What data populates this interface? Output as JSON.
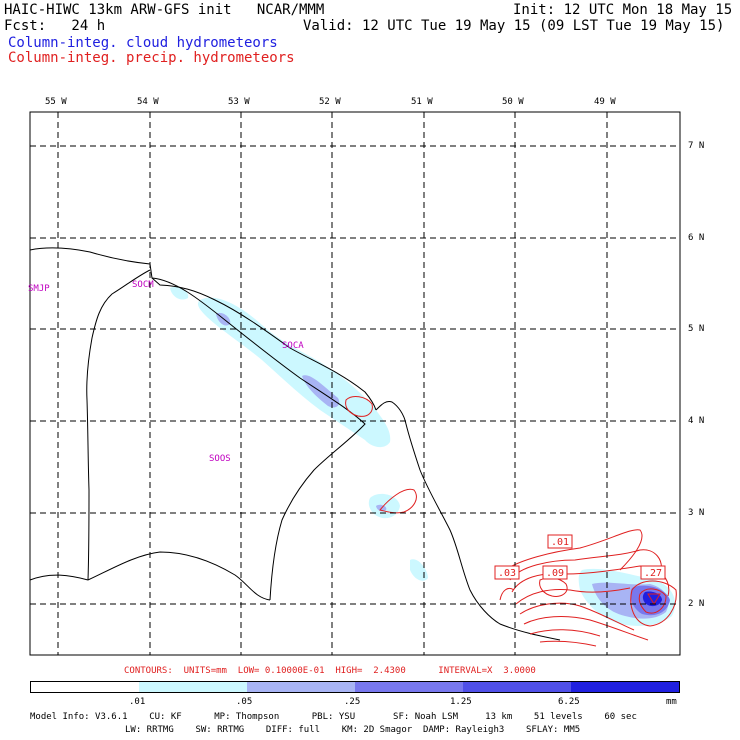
{
  "header": {
    "title": "HAIC-HIWC 13km ARW-GFS init   NCAR/MMM",
    "init": "Init: 12 UTC Mon 18 May 15",
    "fcst": "Fcst:   24 h",
    "valid": "Valid: 12 UTC Tue 19 May 15 (09 LST Tue 19 May 15)",
    "legend_cloud": "Column-integ. cloud hydrometeors",
    "legend_precip": "Column-integ. precip. hydrometeors"
  },
  "map": {
    "lon_labels": [
      "55 W",
      "54 W",
      "53 W",
      "52 W",
      "51 W",
      "50 W",
      "49 W"
    ],
    "lat_labels": [
      "7 N",
      "6 N",
      "5 N",
      "4 N",
      "3 N",
      "2 N"
    ],
    "stations": [
      "SMJP",
      "SOCM",
      "SOCA",
      "SOOS"
    ],
    "contour_labels": [
      ".01",
      ".03",
      ".09",
      ".27"
    ]
  },
  "contours_line": {
    "text": "CONTOURS:  UNITS=mm  LOW= 0.10000E-01  HIGH=  2.4300      INTERVAL=X  3.0000"
  },
  "colorbar": {
    "levels": [
      ".01",
      ".05",
      ".25",
      "1.25",
      "6.25"
    ],
    "unit": "mm",
    "colors": [
      "#ffffff",
      "#ccf8ff",
      "#a8b4f4",
      "#7878ee",
      "#5050e8",
      "#2020e0"
    ]
  },
  "model_info": {
    "line1": "Model Info: V3.6.1    CU: KF      MP: Thompson      PBL: YSU       SF: Noah LSM     13 km    51 levels    60 sec",
    "line2": "LW: RRTMG    SW: RRTMG    DIFF: full    KM: 2D Smagor  DAMP: Rayleigh3    SFLAY: MM5"
  }
}
